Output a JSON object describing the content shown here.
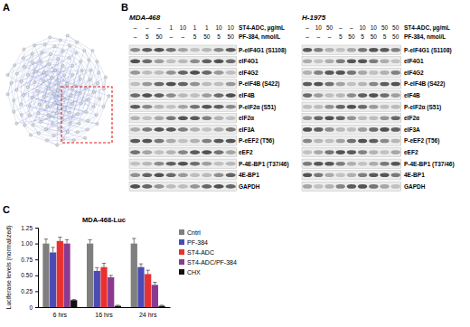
{
  "panel_labels": [
    "A",
    "B",
    "C"
  ],
  "blots": [
    {
      "title": "MDA-468",
      "treatments": [
        {
          "label": "ST4-ADC, µg/mL",
          "lanes": [
            "–",
            "–",
            "–",
            "1",
            "10",
            "1",
            "1",
            "10",
            "10"
          ]
        },
        {
          "label": "PF-384, nmol/L",
          "lanes": [
            "–",
            "5",
            "50",
            "–",
            "–",
            "5",
            "50",
            "5",
            "50"
          ]
        }
      ],
      "rows": [
        "P-eIF4G1 (S1108)",
        "eIF4G1",
        "eIF4G2",
        "P-eIF4B (S422)",
        "eIF4B",
        "P-eIF2α (S51)",
        "eIF2α",
        "eIF3A",
        "P-eEF2 (T56)",
        "eEF2",
        "P-4E-BP1 (T37/46)",
        "4E-BP1",
        "GAPDH"
      ]
    },
    {
      "title": "H-1975",
      "treatments": [
        {
          "label": "ST4-ADC, µg/mL",
          "lanes": [
            "–",
            "10",
            "50",
            "–",
            "–",
            "10",
            "10",
            "50",
            "50"
          ]
        },
        {
          "label": "PF-384, nmol/L",
          "lanes": [
            "–",
            "–",
            "–",
            "5",
            "50",
            "5",
            "50",
            "5",
            "50"
          ]
        }
      ],
      "rows": [
        "P-eIF4G1 (S1108)",
        "eIF4G1",
        "eIF4G2",
        "P-eIF4B (S422)",
        "eIF4B",
        "P-eIF2α (S51)",
        "eIF2α",
        "eIF3A",
        "P-eEF2 (T56)",
        "eEF2",
        "P-4E-BP1 (T37/46)",
        "4E-BP1",
        "GAPDH"
      ]
    }
  ],
  "chart_data": {
    "type": "bar",
    "title": "MDA-468-Luc",
    "y_label": "Luciferase levels (normalized)",
    "categories": [
      "6 hrs",
      "16 hrs",
      "24 hrs"
    ],
    "series": [
      {
        "name": "Cntrl",
        "color": "#7f7f7f",
        "values": [
          1.0,
          1.0,
          1.0
        ],
        "errors": [
          0.07,
          0.06,
          0.08
        ]
      },
      {
        "name": "PF-384",
        "color": "#4b4bb5",
        "values": [
          0.86,
          0.57,
          0.63
        ],
        "errors": [
          0.08,
          0.05,
          0.05
        ]
      },
      {
        "name": "ST4-ADC",
        "color": "#e8312f",
        "values": [
          1.04,
          0.63,
          0.52
        ],
        "errors": [
          0.06,
          0.06,
          0.06
        ]
      },
      {
        "name": "ST4-ADC/PF-384",
        "color": "#8b3a8f",
        "values": [
          1.0,
          0.47,
          0.35
        ],
        "errors": [
          0.06,
          0.03,
          0.04
        ]
      },
      {
        "name": "CHX",
        "color": "#111111",
        "values": [
          0.11,
          0.02,
          0.02
        ],
        "errors": [
          0.01,
          0.01,
          0.01
        ]
      }
    ],
    "ylim": [
      0,
      1.25
    ],
    "yticks": [
      0,
      0.25,
      {
        "value": 0.5,
        "label": "0.50"
      },
      0.75,
      {
        "value": 1,
        "label": "1.00"
      },
      1.25
    ],
    "grid": false,
    "legend": "right"
  }
}
